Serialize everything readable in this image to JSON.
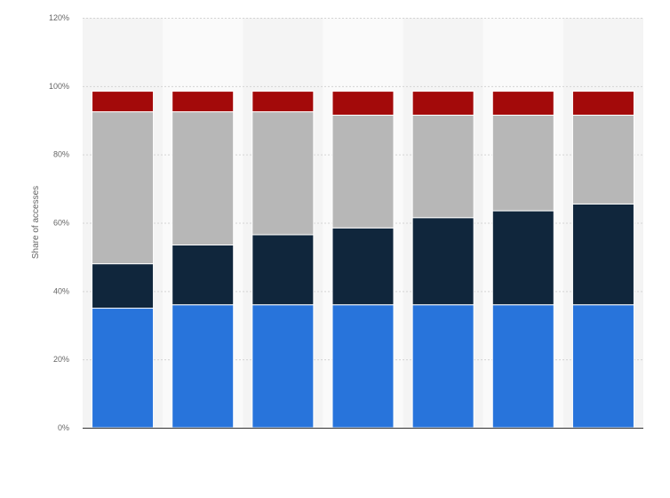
{
  "chart_data": {
    "type": "bar",
    "stacked": true,
    "title": "",
    "xlabel": "",
    "ylabel": "Share of accesses",
    "ylim": [
      0,
      120
    ],
    "y_ticks": [
      0,
      20,
      40,
      60,
      80,
      100,
      120
    ],
    "y_tick_labels": [
      "0%",
      "20%",
      "40%",
      "60%",
      "80%",
      "100%",
      "120%"
    ],
    "grid": true,
    "legend": "none",
    "categories": [
      "",
      "",
      "",
      "",
      "",
      "",
      ""
    ],
    "series": [
      {
        "color": "#2874db",
        "values": [
          35,
          36,
          36,
          36,
          36,
          36,
          36
        ]
      },
      {
        "color": "#10263c",
        "values": [
          13,
          17.5,
          20.5,
          22.5,
          25.5,
          27.5,
          29.5
        ]
      },
      {
        "color": "#b7b7b7",
        "values": [
          44.5,
          39,
          36,
          33,
          30,
          28,
          26
        ]
      },
      {
        "color": "#a30a0a",
        "values": [
          6,
          6,
          6,
          7,
          7,
          7,
          7
        ]
      }
    ]
  }
}
